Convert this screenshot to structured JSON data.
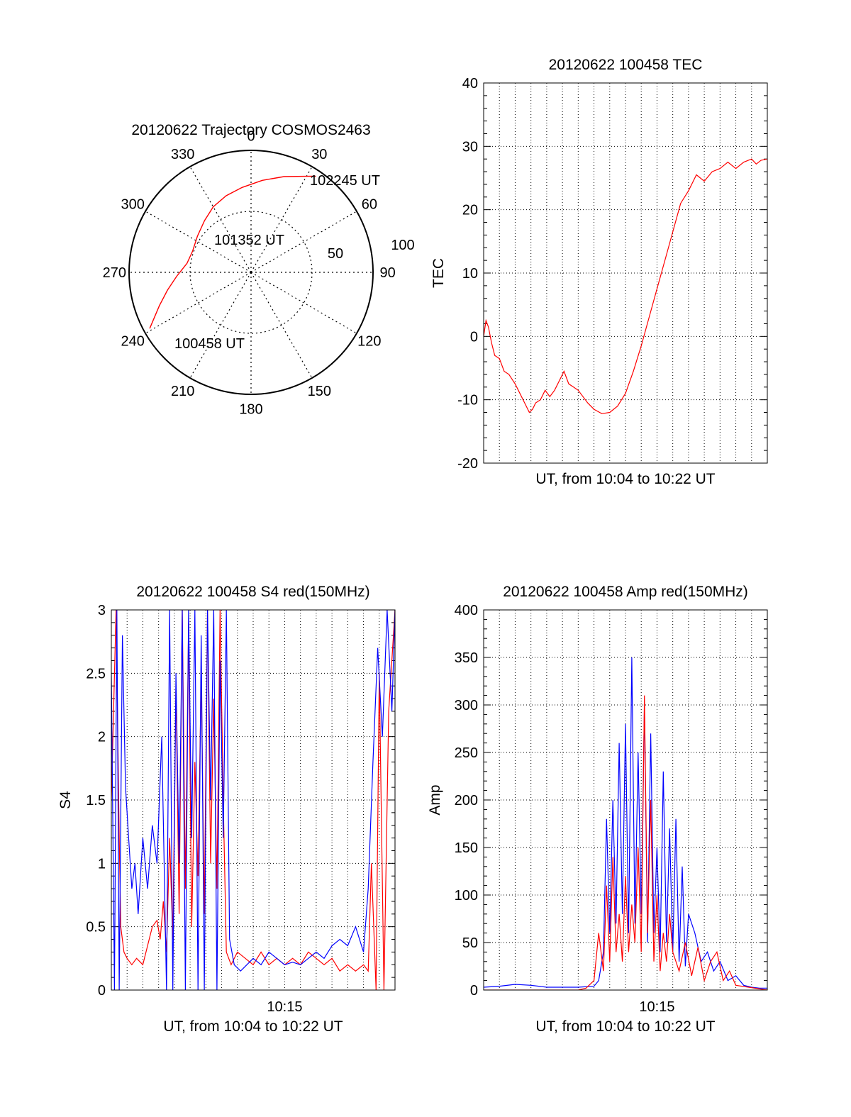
{
  "colors": {
    "red": "#ff0000",
    "blue": "#0000ff",
    "axis": "#000000",
    "grid": "#000000"
  },
  "chart_data": [
    {
      "id": "trajectory",
      "type": "polar",
      "title": "20120622 Trajectory COSMOS2463",
      "azimuth_ticks": [
        "0",
        "30",
        "60",
        "90",
        "120",
        "150",
        "180",
        "210",
        "240",
        "270",
        "300",
        "330"
      ],
      "radial_ticks": [
        "50",
        "100"
      ],
      "grid": true,
      "track_color": "red",
      "track": [
        {
          "az": 241,
          "r": 95
        },
        {
          "az": 250,
          "r": 80
        },
        {
          "az": 258,
          "r": 70
        },
        {
          "az": 267,
          "r": 61
        },
        {
          "az": 278,
          "r": 53
        },
        {
          "az": 290,
          "r": 51
        },
        {
          "az": 304,
          "r": 53
        },
        {
          "az": 318,
          "r": 57
        },
        {
          "az": 330,
          "r": 62
        },
        {
          "az": 342,
          "r": 66
        },
        {
          "az": 354,
          "r": 70
        },
        {
          "az": 7,
          "r": 76
        },
        {
          "az": 19,
          "r": 83
        },
        {
          "az": 29,
          "r": 90
        },
        {
          "az": 34,
          "r": 95
        }
      ],
      "annotations": [
        {
          "text": "100458 UT",
          "az": 240,
          "r": 96
        },
        {
          "text": "101352 UT",
          "az": 5,
          "r": 30
        },
        {
          "text": "102245 UT",
          "az": 40,
          "r": 92
        }
      ]
    },
    {
      "id": "tec",
      "type": "line",
      "title": "20120622 100458 TEC",
      "xlabel": "UT, from 10:04 to 10:22 UT",
      "ylabel": "TEC",
      "ylim": [
        -20,
        40
      ],
      "yticks": [
        "-20",
        "-10",
        "0",
        "10",
        "20",
        "30",
        "40"
      ],
      "xlim": [
        0,
        18
      ],
      "xtick_labels": [],
      "grid": true,
      "series": [
        {
          "color": "red",
          "x": [
            0,
            0.15,
            0.3,
            0.5,
            0.7,
            1.0,
            1.3,
            1.6,
            2.0,
            2.3,
            2.6,
            2.9,
            3.1,
            3.3,
            3.6,
            3.9,
            4.2,
            4.5,
            4.8,
            5.1,
            5.4,
            5.7,
            6.0,
            6.3,
            6.6,
            7.0,
            7.5,
            8.0,
            8.5,
            9.0,
            9.5,
            10.0,
            10.5,
            11.0,
            11.5,
            12.0,
            12.5,
            13.0,
            13.5,
            14.0,
            14.5,
            15.0,
            15.5,
            16.0,
            16.5,
            17.0,
            17.3,
            17.6,
            18.0
          ],
          "y": [
            0,
            2.5,
            1.5,
            -1,
            -3,
            -3.5,
            -5.5,
            -6,
            -7.5,
            -9,
            -10.5,
            -12,
            -11.5,
            -10.5,
            -10,
            -8.5,
            -9.5,
            -8.5,
            -7,
            -5.5,
            -7.5,
            -8,
            -8.5,
            -9.5,
            -10.5,
            -11.5,
            -12.2,
            -12.0,
            -11,
            -9,
            -5.5,
            -1.5,
            3,
            7.5,
            12,
            16.5,
            21,
            23,
            25.5,
            24.5,
            26,
            26.5,
            27.5,
            26.5,
            27.5,
            28,
            27.2,
            27.8,
            28
          ]
        }
      ]
    },
    {
      "id": "s4",
      "type": "line",
      "title": "20120622 100458 S4 red(150MHz)",
      "xlabel": "UT, from 10:04 to 10:22 UT",
      "ylabel": "S4",
      "ylim": [
        0,
        3
      ],
      "yticks": [
        "0",
        "0.5",
        "1",
        "1.5",
        "2",
        "2.5",
        "3"
      ],
      "xlim": [
        0,
        18
      ],
      "xtick_labels": [
        {
          "x": 11,
          "label": "10:15"
        }
      ],
      "grid": true,
      "series": [
        {
          "color": "red",
          "x": [
            0,
            0.3,
            0.5,
            0.6,
            0.8,
            1.0,
            1.3,
            1.6,
            2.0,
            2.3,
            2.6,
            2.9,
            3.1,
            3.3,
            3.5,
            3.7,
            3.9,
            4.1,
            4.3,
            4.5,
            4.7,
            4.9,
            5.1,
            5.3,
            5.5,
            5.7,
            5.9,
            6.1,
            6.3,
            6.5,
            6.7,
            6.9,
            7.1,
            7.3,
            7.6,
            8.0,
            8.5,
            9.0,
            9.5,
            10.0,
            10.5,
            11.0,
            11.5,
            12.0,
            12.5,
            13.0,
            13.5,
            14.0,
            14.5,
            15.0,
            15.5,
            16.0,
            16.3,
            16.5,
            16.8,
            17.0,
            17.3,
            17.6,
            18.0
          ],
          "y": [
            1.5,
            3,
            1.2,
            0.5,
            0.3,
            0.25,
            0.2,
            0.25,
            0.2,
            0.35,
            0.5,
            0.55,
            0.4,
            0.7,
            0.3,
            1.2,
            0.4,
            2.4,
            0.6,
            3,
            0.8,
            2.9,
            0.5,
            1.8,
            0.9,
            2.5,
            0.6,
            3,
            1.0,
            2.3,
            0.8,
            3,
            1.5,
            0.3,
            0.2,
            0.3,
            0.25,
            0.2,
            0.3,
            0.2,
            0.25,
            0.2,
            0.25,
            0.2,
            0.3,
            0.25,
            0.2,
            0.25,
            0.15,
            0.2,
            0.15,
            0.2,
            0.15,
            1.0,
            0,
            2.5,
            0,
            2.2,
            3
          ]
        },
        {
          "color": "blue",
          "x": [
            0,
            0.2,
            0.35,
            0.5,
            0.7,
            0.9,
            1.1,
            1.3,
            1.5,
            1.7,
            2.0,
            2.3,
            2.6,
            2.9,
            3.2,
            3.5,
            3.7,
            3.9,
            4.1,
            4.3,
            4.5,
            4.7,
            4.9,
            5.1,
            5.3,
            5.5,
            5.7,
            5.9,
            6.1,
            6.3,
            6.5,
            6.7,
            6.9,
            7.1,
            7.3,
            7.5,
            7.8,
            8.2,
            8.6,
            9.0,
            9.5,
            10.0,
            10.5,
            11.0,
            11.5,
            12.0,
            12.5,
            13.0,
            13.5,
            14.0,
            14.5,
            15.0,
            15.5,
            16.0,
            16.3,
            16.6,
            16.9,
            17.2,
            17.5,
            17.8,
            18.0
          ],
          "y": [
            2.5,
            0,
            3,
            0,
            2.8,
            1.6,
            1.2,
            0.8,
            1.0,
            0.6,
            1.2,
            0.8,
            1.3,
            1.0,
            2.0,
            0,
            3,
            0,
            2.5,
            1.0,
            3,
            0,
            3,
            1.2,
            3,
            0,
            2.8,
            0,
            3,
            1.5,
            3,
            0,
            2.6,
            1.2,
            3,
            0.4,
            0.2,
            0.15,
            0.2,
            0.25,
            0.2,
            0.3,
            0.25,
            0.2,
            0.22,
            0.2,
            0.25,
            0.3,
            0.25,
            0.35,
            0.4,
            0.35,
            0.5,
            0.3,
            0.8,
            1.8,
            2.7,
            2.0,
            3,
            2.2,
            3
          ]
        }
      ]
    },
    {
      "id": "amp",
      "type": "line",
      "title": "20120622 100458 Amp red(150MHz)",
      "xlabel": "UT, from 10:04 to 10:22 UT",
      "ylabel": "Amp",
      "ylim": [
        0,
        400
      ],
      "yticks": [
        "0",
        "50",
        "100",
        "150",
        "200",
        "250",
        "300",
        "350",
        "400"
      ],
      "xlim": [
        0,
        18
      ],
      "xtick_labels": [
        {
          "x": 11,
          "label": "10:15"
        }
      ],
      "grid": true,
      "series": [
        {
          "color": "blue",
          "x": [
            0,
            1.0,
            2.0,
            3.0,
            4.0,
            5.0,
            6.0,
            7.0,
            7.3,
            7.6,
            7.8,
            8.0,
            8.2,
            8.4,
            8.6,
            8.8,
            9.0,
            9.2,
            9.4,
            9.6,
            9.8,
            10.0,
            10.2,
            10.4,
            10.6,
            10.8,
            11.0,
            11.2,
            11.4,
            11.6,
            11.8,
            12.0,
            12.2,
            12.4,
            12.6,
            12.8,
            13.0,
            13.4,
            13.8,
            14.2,
            14.6,
            15.0,
            15.5,
            16.0,
            16.5,
            17.0,
            17.5,
            18.0
          ],
          "y": [
            3,
            4,
            6,
            5,
            3,
            3,
            3,
            4,
            10,
            40,
            180,
            60,
            200,
            70,
            260,
            80,
            280,
            60,
            350,
            70,
            250,
            80,
            300,
            50,
            270,
            60,
            150,
            40,
            230,
            50,
            170,
            40,
            180,
            30,
            130,
            25,
            80,
            60,
            30,
            40,
            20,
            30,
            10,
            15,
            5,
            3,
            2,
            2
          ]
        },
        {
          "color": "red",
          "x": [
            0,
            6.0,
            6.5,
            7.0,
            7.3,
            7.6,
            7.8,
            8.0,
            8.2,
            8.4,
            8.6,
            8.8,
            9.0,
            9.2,
            9.4,
            9.6,
            9.8,
            10.0,
            10.2,
            10.4,
            10.6,
            10.8,
            11.0,
            11.2,
            11.4,
            11.6,
            11.8,
            12.0,
            12.4,
            12.8,
            13.2,
            13.6,
            14.0,
            14.4,
            14.8,
            15.2,
            15.6,
            16.0,
            18.0
          ],
          "y": [
            0,
            0,
            2,
            10,
            60,
            20,
            110,
            30,
            140,
            40,
            80,
            30,
            120,
            40,
            90,
            50,
            150,
            40,
            310,
            60,
            200,
            30,
            100,
            20,
            60,
            30,
            80,
            40,
            20,
            50,
            15,
            45,
            10,
            30,
            40,
            10,
            20,
            5,
            0
          ]
        }
      ]
    }
  ]
}
